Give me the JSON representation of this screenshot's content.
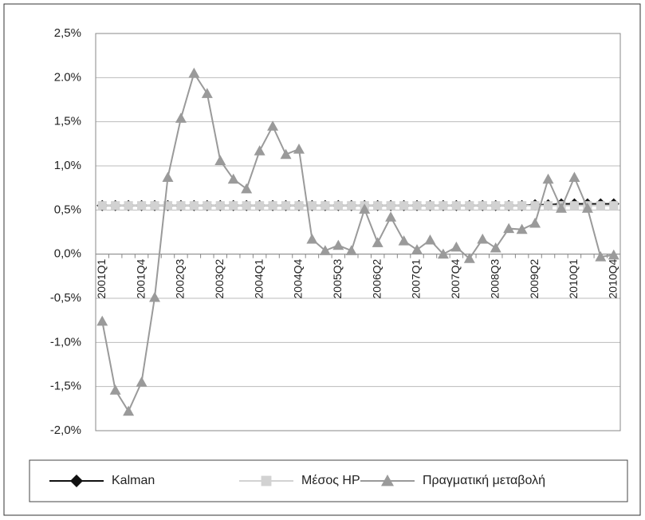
{
  "chart_data": {
    "type": "line",
    "categories": [
      "2001Q1",
      null,
      null,
      "2001Q4",
      null,
      null,
      "2002Q3",
      null,
      null,
      "2003Q2",
      null,
      null,
      "2004Q1",
      null,
      null,
      "2004Q4",
      null,
      null,
      "2005Q3",
      null,
      null,
      "2006Q2",
      null,
      null,
      "2007Q1",
      null,
      null,
      "2007Q4",
      null,
      null,
      "2008Q3",
      null,
      null,
      "2009Q2",
      null,
      null,
      "2010Q1",
      null,
      null,
      "2010Q4"
    ],
    "series": [
      {
        "name": "Kalman",
        "color": "#111111",
        "marker": "diamond",
        "values": [
          0.55,
          0.55,
          0.55,
          0.55,
          0.55,
          0.55,
          0.55,
          0.55,
          0.55,
          0.55,
          0.55,
          0.55,
          0.55,
          0.55,
          0.55,
          0.55,
          0.55,
          0.55,
          0.55,
          0.55,
          0.55,
          0.55,
          0.55,
          0.55,
          0.55,
          0.55,
          0.55,
          0.55,
          0.55,
          0.55,
          0.55,
          0.55,
          0.55,
          0.56,
          0.56,
          0.57,
          0.57,
          0.57,
          0.57,
          0.57
        ]
      },
      {
        "name": "Μέσος HP",
        "color": "#d2d2d2",
        "marker": "square",
        "values": [
          0.55,
          0.55,
          0.55,
          0.55,
          0.55,
          0.55,
          0.55,
          0.55,
          0.55,
          0.55,
          0.55,
          0.55,
          0.55,
          0.55,
          0.55,
          0.55,
          0.55,
          0.55,
          0.55,
          0.55,
          0.55,
          0.55,
          0.55,
          0.55,
          0.55,
          0.55,
          0.55,
          0.55,
          0.55,
          0.55,
          0.55,
          0.55,
          0.55,
          0.55,
          0.55,
          0.55,
          0.55,
          0.55,
          0.55,
          0.55
        ]
      },
      {
        "name": "Πραγματική μεταβολή",
        "color": "#9a9a9a",
        "marker": "triangle",
        "values": [
          -0.76,
          -1.54,
          -1.78,
          -1.45,
          -0.49,
          0.87,
          1.54,
          2.05,
          1.82,
          1.06,
          0.85,
          0.74,
          1.17,
          1.45,
          1.13,
          1.19,
          0.17,
          0.04,
          0.1,
          0.04,
          0.51,
          0.13,
          0.42,
          0.15,
          0.05,
          0.16,
          0.0,
          0.08,
          -0.05,
          0.17,
          0.07,
          0.29,
          0.28,
          0.35,
          0.85,
          0.52,
          0.87,
          0.52,
          -0.03,
          -0.01
        ]
      }
    ],
    "ylim": [
      -2.0,
      2.5
    ],
    "yticks": [
      {
        "value": -2.0,
        "label": "-2,0%"
      },
      {
        "value": -1.5,
        "label": "-1,5%"
      },
      {
        "value": -1.0,
        "label": "-1,0%"
      },
      {
        "value": -0.5,
        "label": "-0,5%"
      },
      {
        "value": 0.0,
        "label": "0,0%"
      },
      {
        "value": 0.5,
        "label": "0,5%"
      },
      {
        "value": 1.0,
        "label": "1,0%"
      },
      {
        "value": 1.5,
        "label": "1,5%"
      },
      {
        "value": 2.0,
        "label": "2.0%"
      },
      {
        "value": 2.5,
        "label": "2,5%"
      }
    ],
    "grid": true,
    "legend": "bottom"
  }
}
